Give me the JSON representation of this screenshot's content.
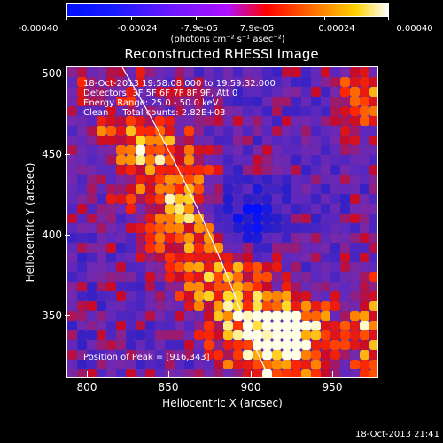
{
  "colorbar": {
    "ticks": [
      "-0.00040",
      "-0.00024",
      "-7.9e-05",
      "7.9e-05",
      "0.00024",
      "0.00040"
    ],
    "units": "(photons cm⁻² s⁻¹ asec⁻²)"
  },
  "plot": {
    "title": "Reconstructed RHESSI Image",
    "info_lines": [
      "18-Oct-2013 19:58:08.000 to 19:59:32.000",
      "Detectors: 3F 5F 6F 7F 8F 9F, Att 0",
      "Energy Range: 25.0 - 50.0 keV",
      "Clean     Total counts: 2.82E+03"
    ],
    "peak_label": "Position of Peak = [916,343]",
    "xlabel": "Heliocentric X (arcsec)",
    "ylabel": "Heliocentric Y (arcsec)",
    "x_ticks": [
      "800",
      "850",
      "900",
      "950"
    ],
    "y_ticks": [
      "500",
      "450",
      "400",
      "350"
    ],
    "timestamp": "18-Oct-2013 21:41"
  },
  "colors": {
    "background": "#000000",
    "axes": "#ffffff",
    "limb": "#ffffff"
  }
}
